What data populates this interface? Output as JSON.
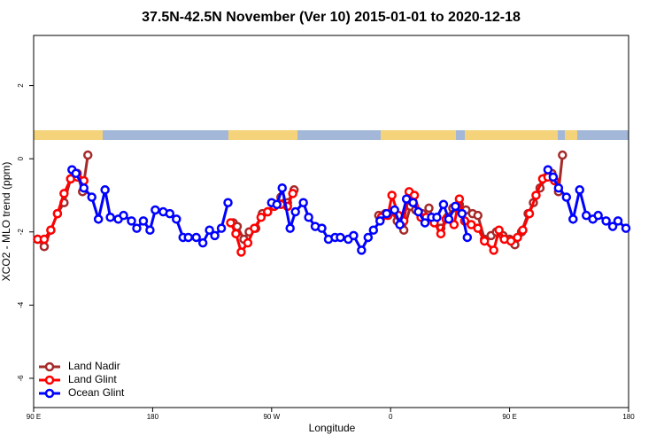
{
  "chart_data": {
    "type": "line",
    "title": "37.5N-42.5N November (Ver 10)   2015-01-01 to 2020-12-18",
    "x_label": "Longitude",
    "y_label": "XCO2 - MLO trend (ppm)",
    "xlim": [
      -270,
      180
    ],
    "xticks": [
      {
        "value": -270,
        "label": "90 E"
      },
      {
        "value": -180,
        "label": "180"
      },
      {
        "value": -90,
        "label": "90 W"
      },
      0,
      {
        "value": 90,
        "label": "90 E"
      },
      180
    ],
    "ylim": [
      -6.8,
      3.37
    ],
    "yticks": [
      -6,
      -4,
      -2,
      0,
      2
    ],
    "legend": "bottomleft",
    "series": [
      {
        "name": "Land Nadir",
        "color": "#a52a2a",
        "x": [
          -267,
          -262,
          -257,
          -252,
          -247,
          -242,
          -237,
          -233,
          -229,
          -170,
          -119,
          -116,
          -111,
          -107,
          -102,
          -97,
          -93,
          -88,
          -83,
          -78,
          -73,
          -40,
          -9,
          -4,
          1,
          5,
          10,
          15,
          19,
          24,
          29,
          33,
          38,
          43,
          47,
          52,
          57,
          62,
          66,
          71,
          76,
          80,
          85,
          90,
          94,
          99,
          104,
          108,
          113,
          118,
          122,
          127,
          130
        ],
        "values": [
          -2.2,
          -2.4,
          -1.95,
          -1.5,
          -1.2,
          -0.55,
          -0.4,
          -0.9,
          0.1,
          null,
          -1.75,
          -1.85,
          -2.2,
          -2.0,
          -1.9,
          -1.5,
          -1.45,
          -1.25,
          -1.05,
          -1.2,
          -0.85,
          null,
          -1.55,
          -1.5,
          -1.45,
          -1.7,
          -1.95,
          -1.3,
          -1.4,
          -1.5,
          -1.35,
          -1.7,
          -1.9,
          -1.6,
          -1.35,
          -1.25,
          -1.4,
          -1.5,
          -1.55,
          -2.2,
          -2.1,
          -2.0,
          -2.1,
          -2.2,
          -2.35,
          -2.0,
          -1.5,
          -1.2,
          -0.8,
          -0.5,
          -0.4,
          -0.9,
          0.1
        ]
      },
      {
        "name": "Land Glint",
        "color": "#ff0000",
        "x": [
          -267,
          -262,
          -257,
          -252,
          -247,
          -242,
          -237,
          -232,
          -170,
          -121,
          -117,
          -113,
          -108,
          -103,
          -98,
          -93,
          -88,
          -83,
          -78,
          -74,
          -40,
          -7,
          -2,
          1,
          6,
          10,
          14,
          18,
          23,
          27,
          33,
          38,
          42,
          48,
          52,
          56,
          61,
          66,
          71,
          78,
          82,
          86,
          91,
          96,
          100,
          105,
          110,
          115,
          119,
          124
        ],
        "values": [
          -2.2,
          -2.2,
          -1.95,
          -1.5,
          -0.95,
          -0.55,
          -0.5,
          -0.6,
          null,
          -1.75,
          -2.05,
          -2.55,
          -2.3,
          -1.9,
          -1.6,
          -1.45,
          -1.3,
          -1.25,
          -1.3,
          -0.95,
          null,
          -1.6,
          -1.55,
          -1.0,
          -1.55,
          -1.7,
          -0.9,
          -1.0,
          -1.6,
          -1.6,
          -1.75,
          -2.05,
          -1.65,
          -1.8,
          -1.1,
          -1.7,
          -1.8,
          -1.9,
          -2.25,
          -2.5,
          -1.95,
          -2.2,
          -2.25,
          -2.15,
          -1.95,
          -1.5,
          -1.0,
          -0.55,
          -0.5,
          -0.6
        ]
      },
      {
        "name": "Ocean Glint",
        "color": "#0000ff",
        "x": [
          -241,
          -238,
          -232,
          -226,
          -221,
          -216,
          -212,
          -206,
          -202,
          -196,
          -192,
          -187,
          -182,
          -178,
          -172,
          -167,
          -162,
          -157,
          -153,
          -147,
          -142,
          -137,
          -133,
          -128,
          -123,
          -105,
          -90,
          -86,
          -82,
          -76,
          -72,
          -66,
          -62,
          -57,
          -52,
          -47,
          -42,
          -38,
          -32,
          -28,
          -22,
          -17,
          -13,
          -8,
          -3,
          3,
          7,
          12,
          17,
          21,
          26,
          31,
          35,
          40,
          44,
          49,
          54,
          58,
          90,
          119,
          123,
          127,
          133,
          138,
          143,
          148,
          153,
          157,
          163,
          168,
          172,
          178
        ],
        "values": [
          -0.3,
          -0.4,
          -0.8,
          -1.05,
          -1.65,
          -0.85,
          -1.6,
          -1.65,
          -1.55,
          -1.7,
          -1.9,
          -1.7,
          -1.95,
          -1.4,
          -1.45,
          -1.5,
          -1.65,
          -2.15,
          -2.15,
          -2.15,
          -2.3,
          -1.95,
          -2.1,
          -1.9,
          -1.2,
          null,
          -1.2,
          -1.25,
          -0.8,
          -1.9,
          -1.45,
          -1.2,
          -1.6,
          -1.85,
          -1.9,
          -2.2,
          -2.15,
          -2.15,
          -2.2,
          -2.1,
          -2.5,
          -2.15,
          -1.95,
          -1.7,
          -1.5,
          -1.4,
          -1.8,
          -1.1,
          -1.2,
          -1.45,
          -1.75,
          -1.6,
          -1.6,
          -1.25,
          -1.65,
          -1.3,
          -1.5,
          -2.15,
          null,
          -0.3,
          -0.5,
          -0.8,
          -1.05,
          -1.65,
          -0.85,
          -1.55,
          -1.65,
          -1.55,
          -1.7,
          -1.85,
          -1.7,
          -1.9
        ]
      }
    ]
  }
}
